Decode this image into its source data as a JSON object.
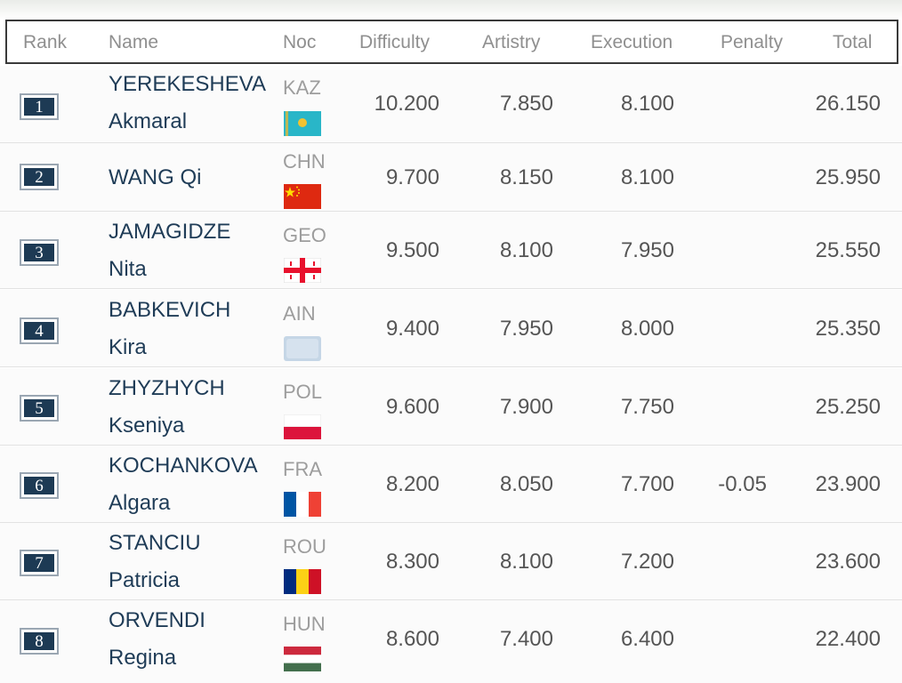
{
  "header": {
    "rank": "Rank",
    "name": "Name",
    "noc": "Noc",
    "difficulty": "Difficulty",
    "artistry": "Artistry",
    "execution": "Execution",
    "penalty": "Penalty",
    "total": "Total"
  },
  "rows": [
    {
      "rank": "1",
      "surname": "YEREKESHEVA",
      "given": "Akmaral",
      "noc": "KAZ",
      "flag": "kazakhstan-flag",
      "difficulty": "10.200",
      "artistry": "7.850",
      "execution": "8.100",
      "penalty": "",
      "total": "26.150"
    },
    {
      "rank": "2",
      "surname": "WANG Qi",
      "given": "",
      "noc": "CHN",
      "flag": "china-flag",
      "difficulty": "9.700",
      "artistry": "8.150",
      "execution": "8.100",
      "penalty": "",
      "total": "25.950"
    },
    {
      "rank": "3",
      "surname": "JAMAGIDZE",
      "given": "Nita",
      "noc": "GEO",
      "flag": "georgia-flag",
      "difficulty": "9.500",
      "artistry": "8.100",
      "execution": "7.950",
      "penalty": "",
      "total": "25.550"
    },
    {
      "rank": "4",
      "surname": "BABKEVICH",
      "given": "Kira",
      "noc": "AIN",
      "flag": "neutral-flag",
      "difficulty": "9.400",
      "artistry": "7.950",
      "execution": "8.000",
      "penalty": "",
      "total": "25.350"
    },
    {
      "rank": "5",
      "surname": "ZHYZHYCH",
      "given": "Kseniya",
      "noc": "POL",
      "flag": "poland-flag",
      "difficulty": "9.600",
      "artistry": "7.900",
      "execution": "7.750",
      "penalty": "",
      "total": "25.250"
    },
    {
      "rank": "6",
      "surname": "KOCHANKOVA",
      "given": "Algara",
      "noc": "FRA",
      "flag": "france-flag",
      "difficulty": "8.200",
      "artistry": "8.050",
      "execution": "7.700",
      "penalty": "-0.05",
      "total": "23.900"
    },
    {
      "rank": "7",
      "surname": "STANCIU",
      "given": "Patricia",
      "noc": "ROU",
      "flag": "romania-flag",
      "difficulty": "8.300",
      "artistry": "8.100",
      "execution": "7.200",
      "penalty": "",
      "total": "23.600"
    },
    {
      "rank": "8",
      "surname": "ORVENDI",
      "given": "Regina",
      "noc": "HUN",
      "flag": "hungary-flag",
      "difficulty": "8.600",
      "artistry": "7.400",
      "execution": "6.400",
      "penalty": "",
      "total": "22.400"
    }
  ],
  "colors": {
    "rank_box": "#1d3a54",
    "name_text": "#1f3c57",
    "header_text": "#8f8f8f"
  }
}
